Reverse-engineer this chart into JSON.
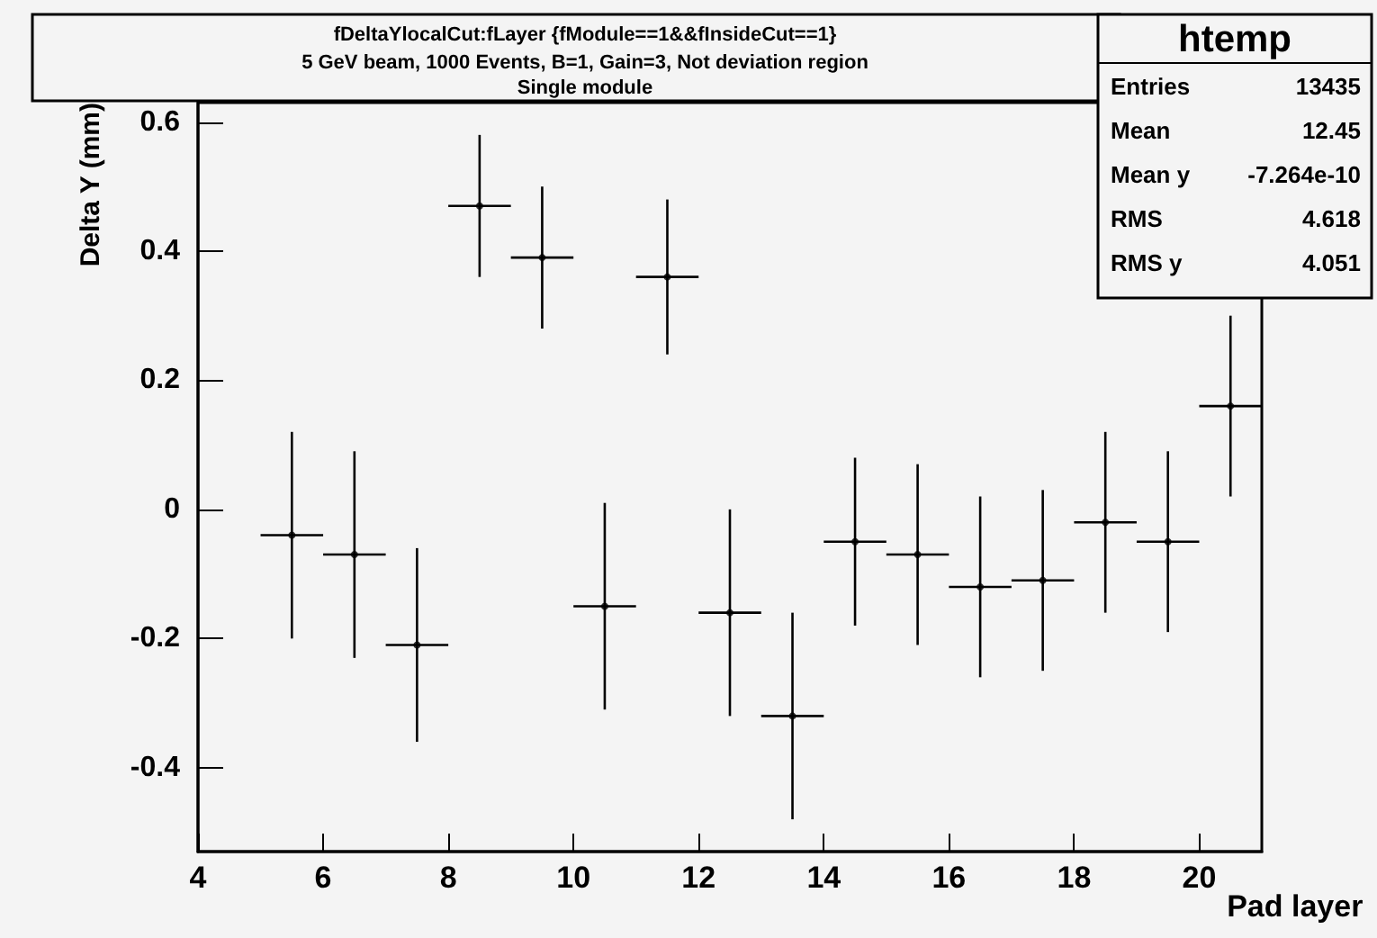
{
  "chart_data": {
    "type": "scatter",
    "title": "fDeltaYlocalCut:fLayer {fModule==1&&fInsideCut==1}",
    "subtitle": "5 GeV beam, 1000 Events, B=1, Gain=3, Not deviation region\nSingle module",
    "xlabel": "Pad layer",
    "ylabel": "Delta Y (mm)",
    "annotations": [
      "htemp",
      "Entries 13435",
      "Mean 12.45",
      "Mean y -7.264e-10",
      "RMS 4.618",
      "RMS y 4.051"
    ],
    "x": [
      5.5,
      6.5,
      7.5,
      8.5,
      9.5,
      10.5,
      11.5,
      12.5,
      13.5,
      14.5,
      15.5,
      16.5,
      17.5,
      18.5,
      19.5,
      20.5
    ],
    "series": [
      {
        "color": "#000000",
        "values": [
          -0.04,
          -0.07,
          -0.21,
          0.47,
          0.39,
          -0.15,
          0.36,
          -0.16,
          -0.32,
          -0.05,
          -0.07,
          -0.12,
          -0.11,
          -0.02,
          -0.05,
          0.16
        ],
        "errors": [
          0.16,
          0.16,
          0.15,
          0.11,
          0.11,
          0.16,
          0.12,
          0.16,
          0.16,
          0.13,
          0.14,
          0.14,
          0.14,
          0.14,
          0.14,
          0.14
        ],
        "xerrors": [
          0.5,
          0.5,
          0.5,
          0.5,
          0.5,
          0.5,
          0.5,
          0.5,
          0.5,
          0.5,
          0.5,
          0.5,
          0.5,
          0.5,
          0.5,
          0.5
        ]
      }
    ],
    "xlim": [
      4,
      21
    ],
    "xticks": [
      4,
      6,
      8,
      10,
      12,
      14,
      16,
      18,
      20
    ],
    "ylim": [
      -0.53,
      0.63
    ],
    "yticks": [
      -0.4,
      -0.2,
      0,
      0.2,
      0.4,
      0.6
    ],
    "grid": false
  }
}
